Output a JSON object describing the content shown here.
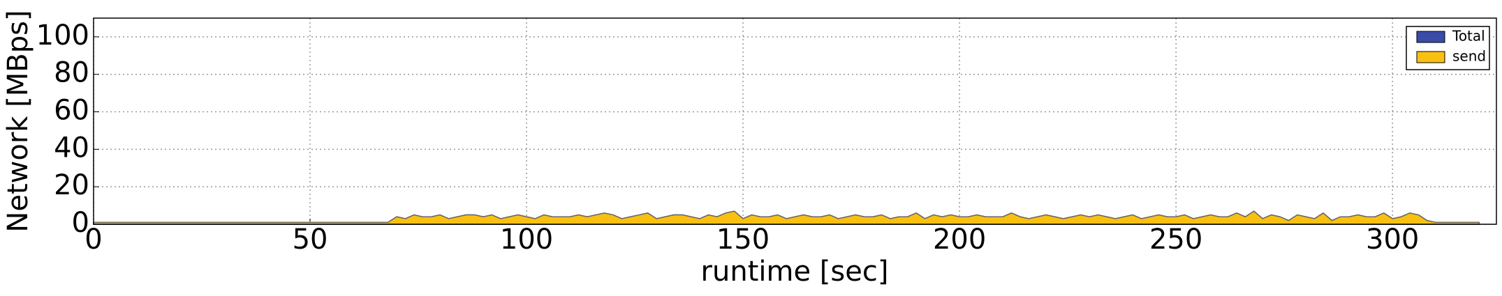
{
  "chart_data": {
    "type": "area",
    "xlabel": "runtime [sec]",
    "ylabel": "Network [MBps]",
    "x": [
      0,
      2,
      4,
      6,
      8,
      10,
      12,
      14,
      16,
      18,
      20,
      22,
      24,
      26,
      28,
      30,
      32,
      34,
      36,
      38,
      40,
      42,
      44,
      46,
      48,
      50,
      52,
      54,
      56,
      58,
      60,
      62,
      64,
      66,
      68,
      70,
      72,
      74,
      76,
      78,
      80,
      82,
      84,
      86,
      88,
      90,
      92,
      94,
      96,
      98,
      100,
      102,
      104,
      106,
      108,
      110,
      112,
      114,
      116,
      118,
      120,
      122,
      124,
      126,
      128,
      130,
      132,
      134,
      136,
      138,
      140,
      142,
      144,
      146,
      148,
      150,
      152,
      154,
      156,
      158,
      160,
      162,
      164,
      166,
      168,
      170,
      172,
      174,
      176,
      178,
      180,
      182,
      184,
      186,
      188,
      190,
      192,
      194,
      196,
      198,
      200,
      202,
      204,
      206,
      208,
      210,
      212,
      214,
      216,
      218,
      220,
      222,
      224,
      226,
      228,
      230,
      232,
      234,
      236,
      238,
      240,
      242,
      244,
      246,
      248,
      250,
      252,
      254,
      256,
      258,
      260,
      262,
      264,
      266,
      268,
      270,
      272,
      274,
      276,
      278,
      280,
      282,
      284,
      286,
      288,
      290,
      292,
      294,
      296,
      298,
      300,
      302,
      304,
      306,
      308,
      310,
      312,
      314,
      316,
      318,
      320
    ],
    "series": [
      {
        "name": "Total",
        "color": "#3a4ca8",
        "values": [
          1,
          1,
          1,
          1,
          1,
          1,
          1,
          1,
          1,
          1,
          1,
          1,
          1,
          1,
          1,
          1,
          1,
          1,
          1,
          1,
          1,
          1,
          1,
          1,
          1,
          1,
          1,
          1,
          1,
          1,
          1,
          1,
          1,
          1,
          1,
          4,
          3,
          5,
          4,
          4,
          5,
          3,
          4,
          5,
          5,
          4,
          5,
          3,
          4,
          5,
          4,
          3,
          5,
          4,
          4,
          4,
          5,
          4,
          5,
          6,
          5,
          3,
          4,
          5,
          6,
          3,
          4,
          5,
          5,
          4,
          3,
          5,
          4,
          6,
          7,
          3,
          5,
          4,
          4,
          5,
          3,
          4,
          5,
          4,
          4,
          5,
          3,
          4,
          5,
          4,
          4,
          5,
          3,
          4,
          4,
          6,
          3,
          5,
          4,
          5,
          4,
          4,
          5,
          4,
          4,
          4,
          6,
          4,
          3,
          4,
          5,
          4,
          3,
          4,
          5,
          4,
          5,
          4,
          3,
          4,
          5,
          3,
          4,
          5,
          4,
          4,
          5,
          3,
          4,
          5,
          4,
          4,
          6,
          4,
          7,
          3,
          5,
          4,
          2,
          5,
          4,
          3,
          6,
          2,
          4,
          4,
          5,
          4,
          4,
          6,
          3,
          4,
          6,
          5,
          2,
          1,
          1,
          1,
          1,
          1,
          1
        ]
      },
      {
        "name": "send",
        "color": "#f9c012",
        "values": [
          1,
          1,
          1,
          1,
          1,
          1,
          1,
          1,
          1,
          1,
          1,
          1,
          1,
          1,
          1,
          1,
          1,
          1,
          1,
          1,
          1,
          1,
          1,
          1,
          1,
          1,
          1,
          1,
          1,
          1,
          1,
          1,
          1,
          1,
          1,
          4,
          3,
          5,
          4,
          4,
          5,
          3,
          4,
          5,
          5,
          4,
          5,
          3,
          4,
          5,
          4,
          3,
          5,
          4,
          4,
          4,
          5,
          4,
          5,
          6,
          5,
          3,
          4,
          5,
          6,
          3,
          4,
          5,
          5,
          4,
          3,
          5,
          4,
          6,
          7,
          3,
          5,
          4,
          4,
          5,
          3,
          4,
          5,
          4,
          4,
          5,
          3,
          4,
          5,
          4,
          4,
          5,
          3,
          4,
          4,
          6,
          3,
          5,
          4,
          5,
          4,
          4,
          5,
          4,
          4,
          4,
          6,
          4,
          3,
          4,
          5,
          4,
          3,
          4,
          5,
          4,
          5,
          4,
          3,
          4,
          5,
          3,
          4,
          5,
          4,
          4,
          5,
          3,
          4,
          5,
          4,
          4,
          6,
          4,
          7,
          3,
          5,
          4,
          2,
          5,
          4,
          3,
          6,
          2,
          4,
          4,
          5,
          4,
          4,
          6,
          3,
          4,
          6,
          5,
          2,
          1,
          1,
          1,
          1,
          1,
          1
        ]
      }
    ],
    "xlim": [
      0,
      324
    ],
    "xticks": [
      0,
      50,
      100,
      150,
      200,
      250,
      300
    ],
    "ylim": [
      0,
      110
    ],
    "yticks": [
      0,
      20,
      40,
      60,
      80,
      100
    ],
    "grid": true,
    "legend": "upper right"
  }
}
